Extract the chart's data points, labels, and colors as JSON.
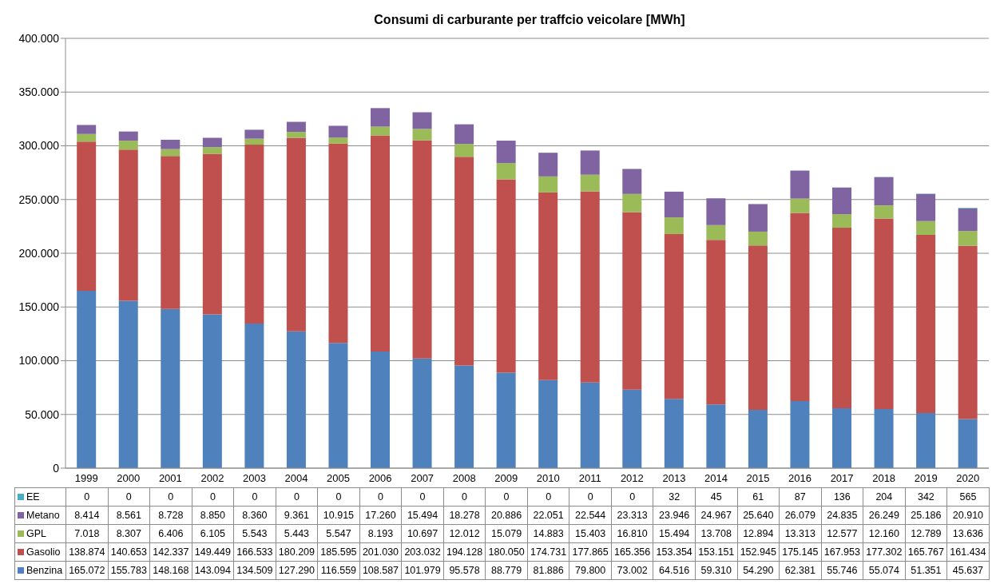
{
  "chart_data": {
    "type": "bar",
    "title": "Consumi di carburante per traffcio veicolare [MWh]",
    "categories": [
      "1999",
      "2000",
      "2001",
      "2002",
      "2003",
      "2004",
      "2005",
      "2006",
      "2007",
      "2008",
      "2009",
      "2010",
      "2011",
      "2012",
      "2013",
      "2014",
      "2015",
      "2016",
      "2017",
      "2018",
      "2019",
      "2020"
    ],
    "stacked": true,
    "grid": "y",
    "legend": "bottom",
    "ylim": [
      0,
      400000
    ],
    "yticks": [
      {
        "value": 0,
        "label": "0"
      },
      {
        "value": 50000,
        "label": "50.000"
      },
      {
        "value": 100000,
        "label": "100.000"
      },
      {
        "value": 150000,
        "label": "150.000"
      },
      {
        "value": 200000,
        "label": "200.000"
      },
      {
        "value": 250000,
        "label": "250.000"
      },
      {
        "value": 300000,
        "label": "300.000"
      },
      {
        "value": 350000,
        "label": "350.000"
      },
      {
        "value": 400000,
        "label": "400.000"
      }
    ],
    "series": [
      {
        "name": "Benzina",
        "color": "#4f81bd",
        "values": [
          165072,
          155783,
          148168,
          143094,
          134509,
          127290,
          116559,
          108587,
          101979,
          95578,
          88779,
          81886,
          79800,
          73002,
          64516,
          59310,
          54290,
          62381,
          55746,
          55074,
          51351,
          45637
        ],
        "value_labels": [
          "165.072",
          "155.783",
          "148.168",
          "143.094",
          "134.509",
          "127.290",
          "116.559",
          "108.587",
          "101.979",
          "95.578",
          "88.779",
          "81.886",
          "79.800",
          "73.002",
          "64.516",
          "59.310",
          "54.290",
          "62.381",
          "55.746",
          "55.074",
          "51.351",
          "45.637"
        ]
      },
      {
        "name": "Gasolio",
        "color": "#c0504d",
        "values": [
          138874,
          140653,
          142337,
          149449,
          166533,
          180209,
          185595,
          201030,
          203032,
          194128,
          180050,
          174731,
          177865,
          165356,
          153354,
          153151,
          152945,
          175145,
          167953,
          177302,
          165767,
          161434
        ],
        "value_labels": [
          "138.874",
          "140.653",
          "142.337",
          "149.449",
          "166.533",
          "180.209",
          "185.595",
          "201.030",
          "203.032",
          "194.128",
          "180.050",
          "174.731",
          "177.865",
          "165.356",
          "153.354",
          "153.151",
          "152.945",
          "175.145",
          "167.953",
          "177.302",
          "165.767",
          "161.434"
        ]
      },
      {
        "name": "GPL",
        "color": "#9bbb59",
        "values": [
          7018,
          8307,
          6406,
          6105,
          5543,
          5443,
          5547,
          8193,
          10697,
          12012,
          15079,
          14883,
          15403,
          16810,
          15494,
          13708,
          12894,
          13313,
          12577,
          12160,
          12789,
          13636
        ],
        "value_labels": [
          "7.018",
          "8.307",
          "6.406",
          "6.105",
          "5.543",
          "5.443",
          "5.547",
          "8.193",
          "10.697",
          "12.012",
          "15.079",
          "14.883",
          "15.403",
          "16.810",
          "15.494",
          "13.708",
          "12.894",
          "13.313",
          "12.577",
          "12.160",
          "12.789",
          "13.636"
        ]
      },
      {
        "name": "Metano",
        "color": "#8064a2",
        "values": [
          8414,
          8561,
          8728,
          8850,
          8360,
          9361,
          10915,
          17260,
          15494,
          18278,
          20886,
          22051,
          22544,
          23313,
          23946,
          24967,
          25640,
          26079,
          24835,
          26249,
          25186,
          20910
        ],
        "value_labels": [
          "8.414",
          "8.561",
          "8.728",
          "8.850",
          "8.360",
          "9.361",
          "10.915",
          "17.260",
          "15.494",
          "18.278",
          "20.886",
          "22.051",
          "22.544",
          "23.313",
          "23.946",
          "24.967",
          "25.640",
          "26.079",
          "24.835",
          "26.249",
          "25.186",
          "20.910"
        ]
      },
      {
        "name": "EE",
        "color": "#4bacc6",
        "values": [
          0,
          0,
          0,
          0,
          0,
          0,
          0,
          0,
          0,
          0,
          0,
          0,
          0,
          0,
          32,
          45,
          61,
          87,
          136,
          204,
          342,
          565
        ],
        "value_labels": [
          "0",
          "0",
          "0",
          "0",
          "0",
          "0",
          "0",
          "0",
          "0",
          "0",
          "0",
          "0",
          "0",
          "0",
          "32",
          "45",
          "61",
          "87",
          "136",
          "204",
          "342",
          "565"
        ]
      }
    ]
  }
}
